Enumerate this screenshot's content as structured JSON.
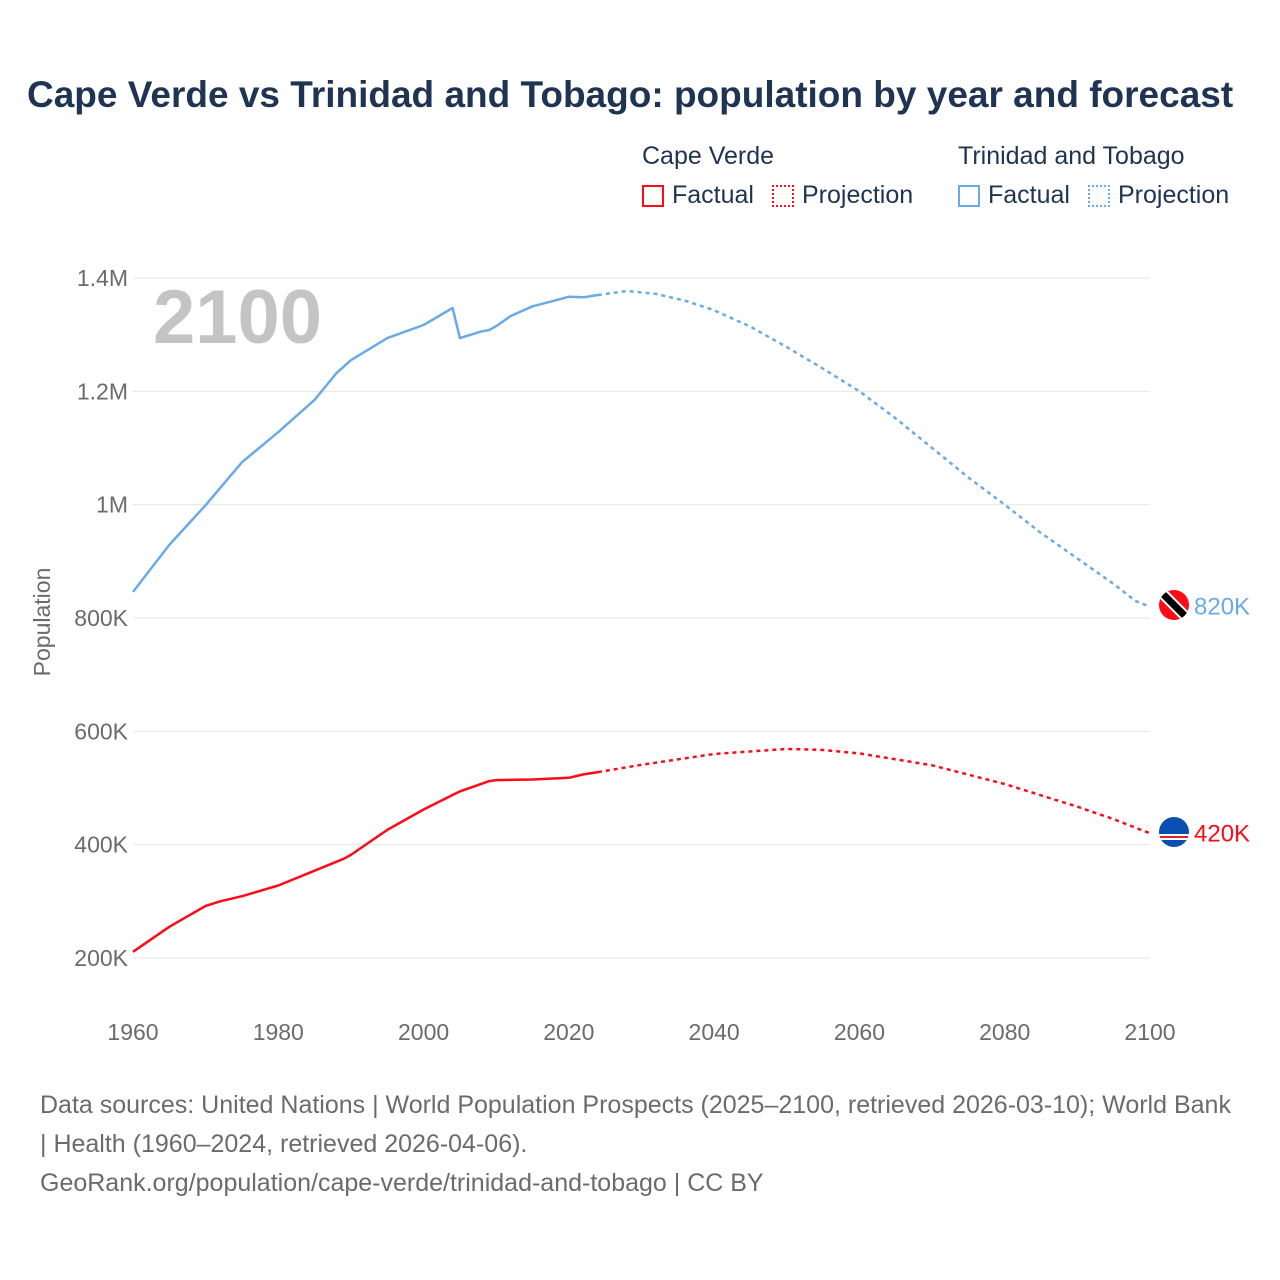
{
  "title": "Cape Verde vs Trinidad and Tobago: population by year and forecast",
  "legend": {
    "groups": [
      {
        "name": "Cape Verde",
        "factual": "Factual",
        "projection": "Projection",
        "color": "#ff0a17"
      },
      {
        "name": "Trinidad and Tobago",
        "factual": "Factual",
        "projection": "Projection",
        "color": "#6aaae6"
      }
    ]
  },
  "year_watermark": "2100",
  "footer": {
    "line1": "Data sources: United Nations | World Population Prospects (2025–2100, retrieved 2026-03-10); World Bank | Health (1960–2024, retrieved 2026-04-06).",
    "line2": "GeoRank.org/population/cape-verde/trinidad-and-tobago | CC BY"
  },
  "chart_data": {
    "type": "line",
    "title": "Cape Verde vs Trinidad and Tobago: population by year and forecast",
    "xlabel": "",
    "ylabel": "Population",
    "xlim": [
      1960,
      2100
    ],
    "ylim": [
      200000,
      1400000
    ],
    "x_ticks": [
      "1960",
      "1980",
      "2000",
      "2020",
      "2040",
      "2060",
      "2080",
      "2100"
    ],
    "y_ticks": [
      {
        "v": 200000,
        "label": "200K"
      },
      {
        "v": 400000,
        "label": "400K"
      },
      {
        "v": 600000,
        "label": "600K"
      },
      {
        "v": 800000,
        "label": "800K"
      },
      {
        "v": 1000000,
        "label": "1M"
      },
      {
        "v": 1200000,
        "label": "1.2M"
      },
      {
        "v": 1400000,
        "label": "1.4M"
      }
    ],
    "grid": true,
    "series": [
      {
        "name": "Trinidad and Tobago",
        "color": "#6aaae6",
        "end_label": "820K",
        "flag": "trinidad-and-tobago",
        "factual": [
          [
            1960,
            846000
          ],
          [
            1965,
            929000
          ],
          [
            1970,
            999000
          ],
          [
            1975,
            1075000
          ],
          [
            1980,
            1128000
          ],
          [
            1985,
            1185000
          ],
          [
            1988,
            1232000
          ],
          [
            1990,
            1255000
          ],
          [
            1995,
            1294000
          ],
          [
            2000,
            1317000
          ],
          [
            2004,
            1347000
          ],
          [
            2005,
            1294000
          ],
          [
            2008,
            1306000
          ],
          [
            2009,
            1308000
          ],
          [
            2010,
            1315000
          ],
          [
            2012,
            1333000
          ],
          [
            2015,
            1350000
          ],
          [
            2018,
            1360000
          ],
          [
            2020,
            1367000
          ],
          [
            2022,
            1366000
          ],
          [
            2024,
            1370000
          ]
        ],
        "projection": [
          [
            2024,
            1370000
          ],
          [
            2028,
            1377000
          ],
          [
            2032,
            1372000
          ],
          [
            2036,
            1360000
          ],
          [
            2040,
            1343000
          ],
          [
            2045,
            1314000
          ],
          [
            2050,
            1278000
          ],
          [
            2055,
            1240000
          ],
          [
            2060,
            1200000
          ],
          [
            2065,
            1152000
          ],
          [
            2070,
            1100000
          ],
          [
            2075,
            1048000
          ],
          [
            2080,
            1000000
          ],
          [
            2085,
            950000
          ],
          [
            2090,
            905000
          ],
          [
            2095,
            860000
          ],
          [
            2098,
            830000
          ],
          [
            2100,
            820000
          ]
        ]
      },
      {
        "name": "Cape Verde",
        "color": "#ff0a17",
        "end_label": "420K",
        "flag": "cape-verde",
        "factual": [
          [
            1960,
            211000
          ],
          [
            1965,
            255000
          ],
          [
            1970,
            292000
          ],
          [
            1972,
            300000
          ],
          [
            1975,
            309000
          ],
          [
            1980,
            328000
          ],
          [
            1985,
            354000
          ],
          [
            1989,
            375000
          ],
          [
            1990,
            382000
          ],
          [
            1995,
            426000
          ],
          [
            2000,
            462000
          ],
          [
            2005,
            494000
          ],
          [
            2009,
            512000
          ],
          [
            2010,
            514000
          ],
          [
            2015,
            515000
          ],
          [
            2020,
            518000
          ],
          [
            2022,
            524000
          ],
          [
            2024,
            528000
          ]
        ],
        "projection": [
          [
            2024,
            528000
          ],
          [
            2030,
            541000
          ],
          [
            2040,
            560000
          ],
          [
            2050,
            569000
          ],
          [
            2055,
            567000
          ],
          [
            2060,
            561000
          ],
          [
            2070,
            540000
          ],
          [
            2080,
            507000
          ],
          [
            2090,
            467000
          ],
          [
            2095,
            445000
          ],
          [
            2100,
            420000
          ]
        ]
      }
    ]
  }
}
